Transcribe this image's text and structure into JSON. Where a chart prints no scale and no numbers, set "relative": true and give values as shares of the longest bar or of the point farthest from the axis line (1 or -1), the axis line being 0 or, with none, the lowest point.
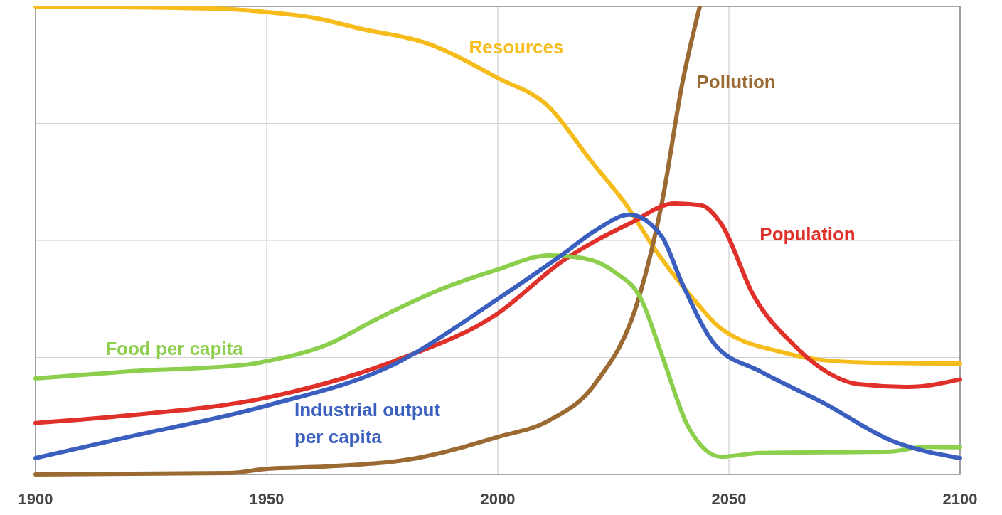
{
  "chart_data": {
    "type": "line",
    "relative": true,
    "xlim": [
      1900,
      2100
    ],
    "xticks": [
      1900,
      1950,
      2000,
      2050,
      2100
    ],
    "grid": true,
    "line_style": "solid",
    "marker": "none",
    "series": [
      {
        "name": "Resources",
        "color": "#f5bc1c",
        "x": [
          1900,
          1940,
          1950,
          1960,
          1970,
          1985,
          2000,
          2011,
          2020,
          2028,
          2034,
          2043,
          2048,
          2062,
          2069,
          2080,
          2100
        ],
        "values": [
          1.0,
          0.995,
          0.988,
          0.976,
          0.953,
          0.92,
          0.847,
          0.786,
          0.672,
          0.573,
          0.481,
          0.367,
          0.314,
          0.26,
          0.246,
          0.239,
          0.237
        ]
      },
      {
        "name": "Pollution",
        "color": "#9b6a33",
        "x": [
          1900,
          1942,
          1950,
          1963,
          1982.5,
          2000,
          2011,
          2021,
          2030.6,
          2035.5,
          2040,
          2043.7
        ],
        "values": [
          0,
          0.003,
          0.012,
          0.017,
          0.035,
          0.08,
          0.115,
          0.193,
          0.38,
          0.58,
          0.84,
          1.0
        ]
      },
      {
        "name": "Population",
        "color": "#e0302a",
        "x": [
          1900,
          1920,
          1950,
          1977.5,
          2000,
          2014,
          2028.5,
          2038.3,
          2044,
          2048.3,
          2055.4,
          2064,
          2071,
          2078,
          2088.8,
          2100
        ],
        "values": [
          0.11,
          0.126,
          0.164,
          0.242,
          0.344,
          0.456,
          0.536,
          0.579,
          0.575,
          0.536,
          0.381,
          0.277,
          0.22,
          0.193,
          0.187,
          0.203
        ]
      },
      {
        "name": "Food per capita",
        "color": "#8ccf4d",
        "x": [
          1900,
          1920,
          1946,
          1950,
          1963,
          1974,
          1988,
          2000,
          2011,
          2018.5,
          2025.5,
          2031,
          2035.5,
          2041.2,
          2048.3,
          2056.8,
          2085,
          2092.3,
          2100
        ],
        "values": [
          0.205,
          0.22,
          0.235,
          0.242,
          0.277,
          0.333,
          0.397,
          0.438,
          0.468,
          0.462,
          0.431,
          0.375,
          0.255,
          0.102,
          0.038,
          0.046,
          0.049,
          0.059,
          0.058
        ]
      },
      {
        "name": "Industrial output per capita",
        "color": "#3a5fbf",
        "x": [
          1900,
          1920,
          1950,
          1977.5,
          2000,
          2014,
          2021.4,
          2028.5,
          2035.5,
          2039.8,
          2047,
          2056.8,
          2071,
          2085,
          2100
        ],
        "values": [
          0.035,
          0.08,
          0.147,
          0.235,
          0.375,
          0.47,
          0.523,
          0.555,
          0.508,
          0.41,
          0.277,
          0.22,
          0.15,
          0.073,
          0.035
        ]
      }
    ]
  }
}
